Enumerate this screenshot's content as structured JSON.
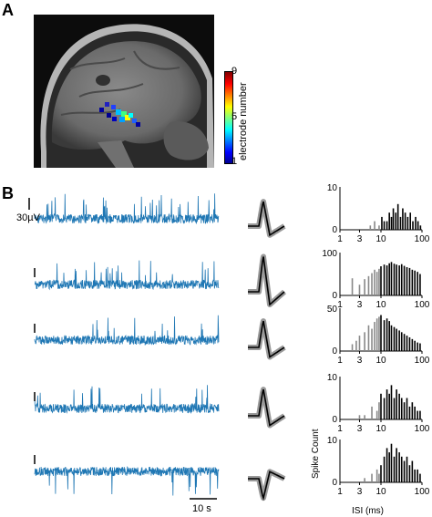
{
  "panel_a": {
    "letter": "A",
    "colorbar": {
      "label": "electrode number",
      "ticks": [
        "9",
        "5",
        "1"
      ],
      "colors": [
        "#00008f",
        "#0000ff",
        "#00ffff",
        "#ffff00",
        "#ff0000",
        "#800000"
      ]
    }
  },
  "panel_b": {
    "letter": "B",
    "voltage_scale": "30µV",
    "time_scale": "10 s",
    "trace_color": "#1f77b4",
    "waveform_color": "#000000",
    "waveform_band_color": "#9a9a9a"
  },
  "chart_data": [
    {
      "type": "bar",
      "row": 1,
      "log_x": true,
      "xlim": [
        1,
        100
      ],
      "ylim": [
        0,
        10
      ],
      "y_ticks": [
        "10",
        "0"
      ],
      "x_tick_labels": [
        "1",
        "3",
        "10",
        "100"
      ],
      "xlabel": "",
      "ylabel": "",
      "bins_ms": [
        5.5,
        7,
        9,
        10.5,
        12,
        14,
        16,
        18,
        20,
        23,
        26,
        30,
        34,
        39,
        45,
        52,
        60,
        70,
        80,
        92
      ],
      "counts": [
        1,
        2,
        1,
        3,
        2,
        2,
        4,
        3,
        5,
        4,
        6,
        3,
        5,
        4,
        3,
        4,
        2,
        3,
        2,
        1
      ]
    },
    {
      "type": "bar",
      "row": 2,
      "log_x": true,
      "xlim": [
        1,
        100
      ],
      "ylim": [
        0,
        100
      ],
      "y_ticks": [
        "100",
        "0"
      ],
      "x_tick_labels": [
        "1",
        "3",
        "10",
        "100"
      ],
      "xlabel": "",
      "ylabel": "",
      "bins_ms": [
        2,
        3,
        4,
        5,
        6,
        7,
        8,
        9,
        10,
        12,
        14,
        16,
        18,
        21,
        24,
        28,
        32,
        37,
        43,
        50,
        58,
        67,
        78,
        90
      ],
      "counts": [
        40,
        25,
        38,
        45,
        52,
        60,
        55,
        62,
        68,
        72,
        70,
        75,
        78,
        74,
        72,
        70,
        73,
        69,
        66,
        64,
        60,
        58,
        55,
        50
      ]
    },
    {
      "type": "bar",
      "row": 3,
      "log_x": true,
      "xlim": [
        1,
        100
      ],
      "ylim": [
        0,
        50
      ],
      "y_ticks": [
        "50",
        "0"
      ],
      "x_tick_labels": [
        "1",
        "3",
        "10",
        "100"
      ],
      "xlabel": "",
      "ylabel": "",
      "bins_ms": [
        2,
        2.5,
        3,
        4,
        5,
        6,
        7,
        8,
        9,
        10,
        12,
        14,
        16,
        18,
        21,
        24,
        28,
        32,
        37,
        43,
        50,
        58,
        67,
        78,
        90
      ],
      "counts": [
        8,
        12,
        18,
        22,
        30,
        26,
        34,
        38,
        40,
        42,
        36,
        38,
        35,
        30,
        28,
        26,
        24,
        22,
        20,
        18,
        16,
        14,
        12,
        10,
        9
      ]
    },
    {
      "type": "bar",
      "row": 4,
      "log_x": true,
      "xlim": [
        1,
        100
      ],
      "ylim": [
        0,
        10
      ],
      "y_ticks": [
        "10",
        "0"
      ],
      "x_tick_labels": [
        "1",
        "3",
        "10",
        "100"
      ],
      "xlabel": "",
      "ylabel": "",
      "bins_ms": [
        3,
        4,
        6,
        8,
        9,
        10,
        12,
        14,
        16,
        18,
        21,
        24,
        28,
        32,
        37,
        43,
        50,
        58,
        67,
        78,
        90
      ],
      "counts": [
        1,
        1,
        3,
        2,
        4,
        6,
        5,
        7,
        6,
        8,
        5,
        7,
        6,
        5,
        4,
        5,
        3,
        4,
        3,
        2,
        2
      ]
    },
    {
      "type": "bar",
      "row": 5,
      "log_x": true,
      "xlim": [
        1,
        100
      ],
      "ylim": [
        0,
        10
      ],
      "y_ticks": [
        "10",
        "0"
      ],
      "x_tick_labels": [
        "1",
        "3",
        "10",
        "100"
      ],
      "xlabel": "ISI (ms)",
      "ylabel": "Spike Count",
      "bins_ms": [
        4,
        6,
        8,
        9,
        10,
        12,
        14,
        16,
        18,
        21,
        24,
        28,
        32,
        37,
        43,
        50,
        58,
        67,
        78,
        90
      ],
      "counts": [
        1,
        2,
        3,
        2,
        4,
        6,
        8,
        7,
        9,
        6,
        8,
        7,
        6,
        5,
        6,
        4,
        5,
        3,
        3,
        2
      ]
    }
  ]
}
